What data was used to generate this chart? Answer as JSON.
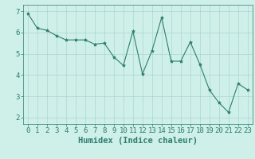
{
  "x": [
    0,
    1,
    2,
    3,
    4,
    5,
    6,
    7,
    8,
    9,
    10,
    11,
    12,
    13,
    14,
    15,
    16,
    17,
    18,
    19,
    20,
    21,
    22,
    23
  ],
  "y": [
    6.9,
    6.2,
    6.1,
    5.85,
    5.65,
    5.65,
    5.65,
    5.45,
    5.5,
    4.85,
    4.45,
    6.05,
    4.05,
    5.15,
    6.7,
    4.65,
    4.65,
    5.55,
    4.5,
    3.3,
    2.7,
    2.25,
    3.6,
    3.3
  ],
  "line_color": "#2e7d6e",
  "marker": "*",
  "marker_size": 3,
  "bg_color": "#cef0e8",
  "grid_color": "#a8d8d0",
  "xlabel": "Humidex (Indice chaleur)",
  "xlim": [
    -0.5,
    23.5
  ],
  "ylim": [
    1.7,
    7.3
  ],
  "yticks": [
    2,
    3,
    4,
    5,
    6,
    7
  ],
  "xticks": [
    0,
    1,
    2,
    3,
    4,
    5,
    6,
    7,
    8,
    9,
    10,
    11,
    12,
    13,
    14,
    15,
    16,
    17,
    18,
    19,
    20,
    21,
    22,
    23
  ],
  "tick_color": "#2e7d6e",
  "label_color": "#2e7d6e",
  "xlabel_fontsize": 7.5,
  "tick_fontsize": 6.5
}
